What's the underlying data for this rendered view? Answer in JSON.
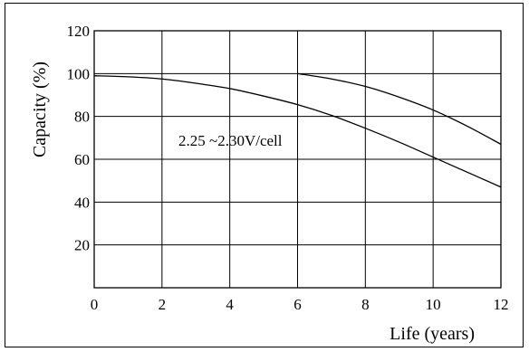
{
  "chart_data": {
    "type": "line",
    "title": "",
    "xlabel": "Life (years)",
    "ylabel": "Capacity (%)",
    "xlim": [
      0,
      12
    ],
    "ylim": [
      0,
      120
    ],
    "x_ticks": [
      "0",
      "2",
      "4",
      "6",
      "8",
      "10",
      "12"
    ],
    "y_ticks": [
      "20",
      "40",
      "60",
      "80",
      "100",
      "120"
    ],
    "grid": true,
    "annotation": "2.25 ~2.30V/cell",
    "series": [
      {
        "x": [
          0,
          1,
          2,
          3,
          4,
          5,
          6,
          7,
          8,
          9,
          10,
          11,
          12
        ],
        "values": [
          99,
          98.5,
          97.5,
          95.5,
          93,
          89.5,
          85.5,
          80.5,
          74.5,
          68,
          61,
          54,
          47
        ]
      },
      {
        "x": [
          6,
          7,
          8,
          9,
          10,
          11,
          12
        ],
        "values": [
          100,
          97.5,
          94,
          89,
          83,
          75.5,
          67
        ]
      }
    ]
  }
}
